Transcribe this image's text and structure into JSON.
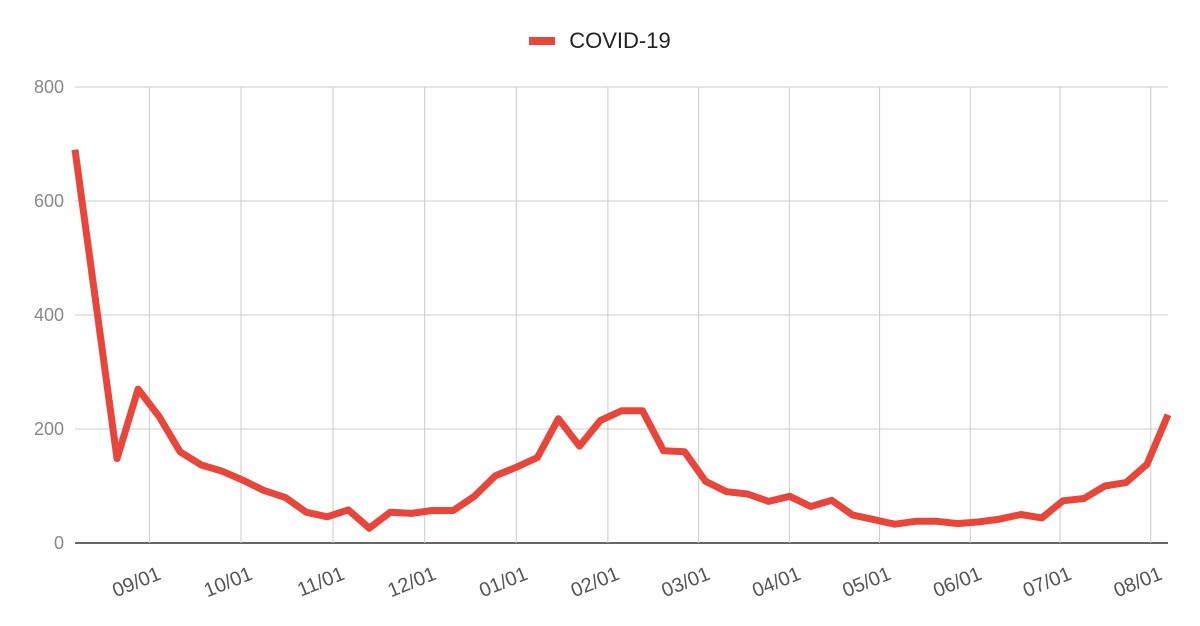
{
  "chart_data": {
    "type": "line",
    "legend_position": "top",
    "grid": true,
    "ylim": [
      0,
      800
    ],
    "y_ticks": [
      "0",
      "200",
      "400",
      "600",
      "800"
    ],
    "x_tick_labels": [
      "09/01",
      "10/01",
      "11/01",
      "12/01",
      "01/01",
      "02/01",
      "03/01",
      "04/01",
      "05/01",
      "06/01",
      "07/01",
      "08/01"
    ],
    "series": [
      {
        "name": "COVID-19",
        "color": "#e8463a",
        "values": [
          690,
          420,
          148,
          270,
          222,
          160,
          137,
          126,
          110,
          92,
          80,
          54,
          46,
          58,
          26,
          54,
          52,
          57,
          57,
          82,
          118,
          133,
          150,
          218,
          170,
          215,
          232,
          232,
          162,
          160,
          108,
          90,
          86,
          73,
          82,
          64,
          75,
          49,
          41,
          33,
          38,
          38,
          34,
          37,
          42,
          50,
          44,
          74,
          78,
          100,
          106,
          138,
          225
        ]
      }
    ]
  }
}
